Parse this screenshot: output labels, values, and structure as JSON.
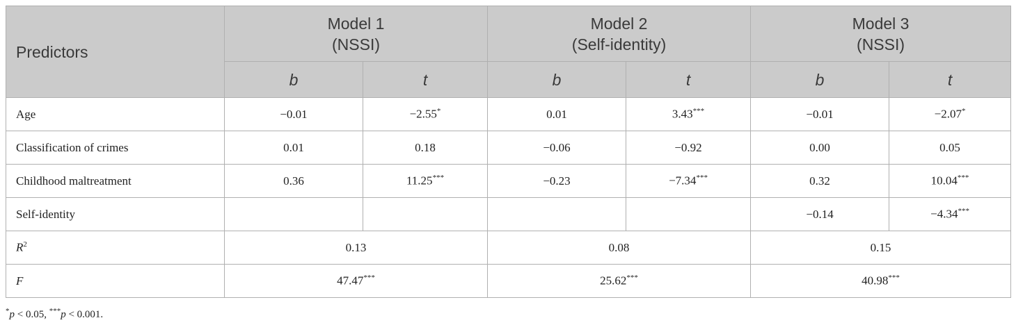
{
  "table": {
    "header": {
      "predictors": "Predictors",
      "models": [
        {
          "name": "Model 1",
          "dv": "(NSSI)"
        },
        {
          "name": "Model 2",
          "dv": "(Self-identity)"
        },
        {
          "name": "Model 3",
          "dv": "(NSSI)"
        }
      ],
      "sub": [
        "b",
        "t",
        "b",
        "t",
        "b",
        "t"
      ]
    },
    "rows": [
      {
        "label": "Age",
        "cells": [
          {
            "text": "−0.01"
          },
          {
            "text": "−2.55",
            "sup": "*"
          },
          {
            "text": "0.01"
          },
          {
            "text": "3.43",
            "sup": "***"
          },
          {
            "text": "−0.01"
          },
          {
            "text": "−2.07",
            "sup": "*"
          }
        ]
      },
      {
        "label": "Classification of crimes",
        "cells": [
          {
            "text": "0.01"
          },
          {
            "text": "0.18"
          },
          {
            "text": "−0.06"
          },
          {
            "text": "−0.92"
          },
          {
            "text": "0.00"
          },
          {
            "text": "0.05"
          }
        ]
      },
      {
        "label": "Childhood maltreatment",
        "cells": [
          {
            "text": "0.36"
          },
          {
            "text": "11.25",
            "sup": "***"
          },
          {
            "text": "−0.23"
          },
          {
            "text": "−7.34",
            "sup": "***"
          },
          {
            "text": "0.32"
          },
          {
            "text": "10.04",
            "sup": "***"
          }
        ]
      },
      {
        "label": "Self-identity",
        "cells": [
          null,
          null,
          null,
          null,
          {
            "text": "−0.14"
          },
          {
            "text": "−4.34",
            "sup": "***"
          }
        ]
      }
    ],
    "summary": [
      {
        "label": "R",
        "label_sup": "2",
        "values": [
          {
            "text": "0.13"
          },
          {
            "text": "0.08"
          },
          {
            "text": "0.15"
          }
        ]
      },
      {
        "label": "F",
        "values": [
          {
            "text": "47.47",
            "sup": "***"
          },
          {
            "text": "25.62",
            "sup": "***"
          },
          {
            "text": "40.98",
            "sup": "***"
          }
        ]
      }
    ]
  },
  "footnote": [
    {
      "sup": "*",
      "italic": "p",
      "text": " < 0.05, "
    },
    {
      "sup": "***",
      "italic": "p",
      "text": " < 0.001."
    }
  ]
}
